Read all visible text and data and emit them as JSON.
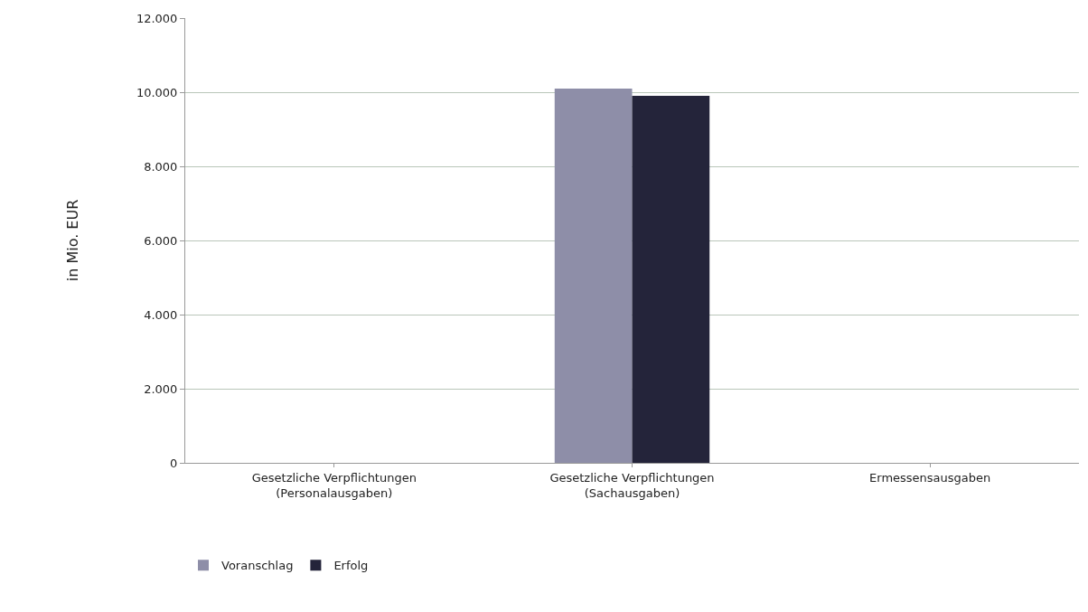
{
  "chart_data": {
    "type": "bar",
    "ylabel": "in Mio. EUR",
    "categories": [
      "Gesetzliche Verpflichtungen (Personalausgaben)",
      "Gesetzliche Verpflichtungen (Sachausgaben)",
      "Ermessensausgaben"
    ],
    "series": [
      {
        "name": "Voranschlag",
        "color": "#8e8ea8",
        "values": [
          0,
          10100,
          0
        ]
      },
      {
        "name": "Erfolg",
        "color": "#24243a",
        "values": [
          0,
          9900,
          0
        ]
      }
    ],
    "ylim": [
      0,
      12000
    ],
    "yticks": [
      {
        "value": 0,
        "label": "0"
      },
      {
        "value": 2000,
        "label": "2.000"
      },
      {
        "value": 4000,
        "label": "4.000"
      },
      {
        "value": 6000,
        "label": "6.000"
      },
      {
        "value": 8000,
        "label": "8.000"
      },
      {
        "value": 10000,
        "label": "10.000"
      },
      {
        "value": 12000,
        "label": "12.000"
      }
    ],
    "grid": "y",
    "legend": "bottom left"
  }
}
